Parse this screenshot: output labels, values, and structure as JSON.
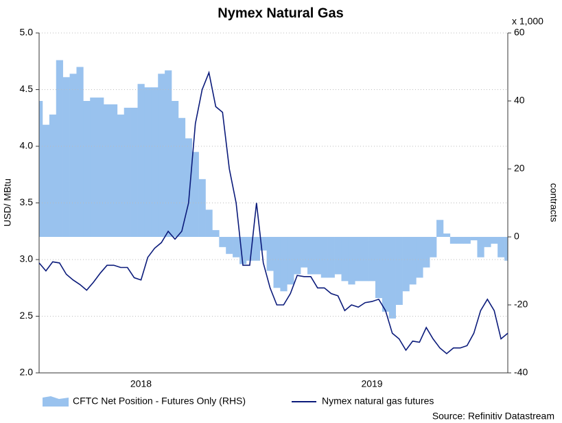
{
  "chart_data": {
    "type": "line",
    "title": "Nymex Natural Gas",
    "y_label": "USD/ MBtu",
    "y2_label": "contracts",
    "y2_unit": "x 1,000",
    "source": "Source: Refinitiv Datastream",
    "categories": [
      null,
      null,
      null,
      null,
      null,
      null,
      null,
      null,
      null,
      null,
      null,
      null,
      null,
      null,
      null,
      "2018",
      null,
      null,
      null,
      null,
      null,
      null,
      null,
      null,
      null,
      null,
      null,
      null,
      null,
      null,
      null,
      null,
      null,
      null,
      null,
      null,
      null,
      null,
      null,
      null,
      null,
      null,
      null,
      null,
      null,
      null,
      null,
      null,
      null,
      "2019",
      null,
      null,
      null,
      null,
      null,
      null,
      null,
      null,
      null,
      null,
      null,
      null,
      null,
      null,
      null,
      null,
      null,
      null,
      null,
      null
    ],
    "series": [
      {
        "name": "CFTC Net Position - Futures Only (RHS)",
        "kind": "area",
        "axis": "y2",
        "color": "#99c2ee",
        "values": [
          40,
          33,
          36,
          52,
          47,
          48,
          50,
          40,
          41,
          41,
          39,
          39,
          36,
          38,
          38,
          45,
          44,
          44,
          48,
          49,
          40,
          35,
          29,
          25,
          17,
          8,
          2,
          -3,
          -5,
          -6,
          -8,
          -7,
          -7,
          -4,
          -10,
          -15,
          -16,
          -14,
          -11,
          -9,
          -11,
          -11,
          -12,
          -12,
          -11,
          -13,
          -14,
          -13,
          -13,
          -13,
          -18,
          -22,
          -24,
          -20,
          -16,
          -14,
          -12,
          -9,
          -6,
          5,
          1,
          -2,
          -2,
          -2,
          -1,
          -6,
          -3,
          -2,
          -6,
          -7
        ]
      },
      {
        "name": "Nymex natural gas futures",
        "kind": "line",
        "color": "#0a1a7a",
        "values": [
          2.97,
          2.9,
          2.98,
          2.97,
          2.87,
          2.82,
          2.78,
          2.73,
          2.8,
          2.88,
          2.95,
          2.95,
          2.93,
          2.93,
          2.84,
          2.82,
          3.02,
          3.1,
          3.15,
          3.25,
          3.18,
          3.25,
          3.5,
          4.2,
          4.5,
          4.65,
          4.35,
          4.3,
          3.8,
          3.5,
          2.95,
          2.95,
          3.5,
          2.97,
          2.75,
          2.6,
          2.6,
          2.7,
          2.86,
          2.85,
          2.85,
          2.75,
          2.75,
          2.7,
          2.68,
          2.55,
          2.6,
          2.58,
          2.62,
          2.63,
          2.65,
          2.55,
          2.35,
          2.3,
          2.2,
          2.28,
          2.27,
          2.4,
          2.3,
          2.22,
          2.17,
          2.22,
          2.22,
          2.24,
          2.35,
          2.55,
          2.65,
          2.55,
          2.3,
          2.35
        ]
      }
    ],
    "ylim": [
      2,
      5
    ],
    "yticks": [
      {
        "value": 2,
        "label": "2.0"
      },
      2.5,
      {
        "value": 3,
        "label": "3.0"
      },
      3.5,
      {
        "value": 4,
        "label": "4.0"
      },
      4.5,
      {
        "value": 5,
        "label": "5.0"
      }
    ],
    "y2lim": [
      -40,
      60
    ],
    "y2ticks": [
      -40,
      -20,
      0,
      20,
      40,
      60
    ],
    "grid": true,
    "legend": "bottom"
  }
}
